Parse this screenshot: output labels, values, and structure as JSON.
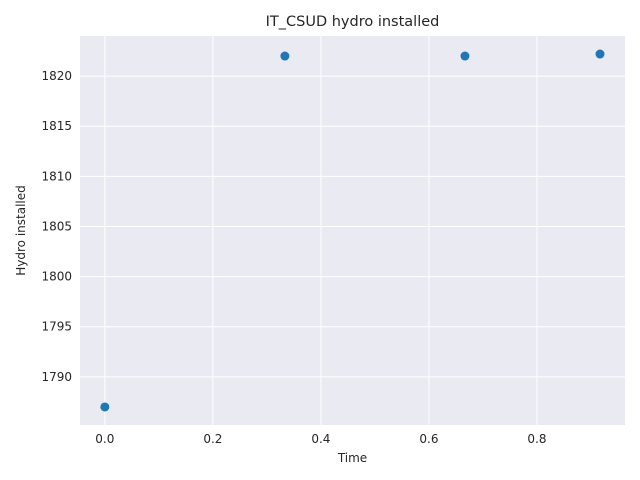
{
  "chart_data": {
    "type": "scatter",
    "title": "IT_CSUD hydro installed",
    "xlabel": "Time",
    "ylabel": "Hydro installed",
    "x": [
      0.0,
      0.3333,
      0.6667,
      0.9167
    ],
    "y": [
      1787.0,
      1822.0,
      1822.0,
      1822.2
    ],
    "xlim": [
      -0.046,
      0.963
    ],
    "ylim": [
      1785.2,
      1824.0
    ],
    "xticks": [
      0.0,
      0.2,
      0.4,
      0.6,
      0.8
    ],
    "xtick_labels": [
      "0.0",
      "0.2",
      "0.4",
      "0.6",
      "0.8"
    ],
    "yticks": [
      1790,
      1795,
      1800,
      1805,
      1810,
      1815,
      1820
    ],
    "ytick_labels": [
      "1790",
      "1795",
      "1800",
      "1805",
      "1810",
      "1815",
      "1820"
    ],
    "grid": true,
    "legend": "none",
    "colors": {
      "background": "#eaeaf2",
      "grid": "#ffffff",
      "marker": "#1f77b4",
      "text": "#262626"
    }
  }
}
